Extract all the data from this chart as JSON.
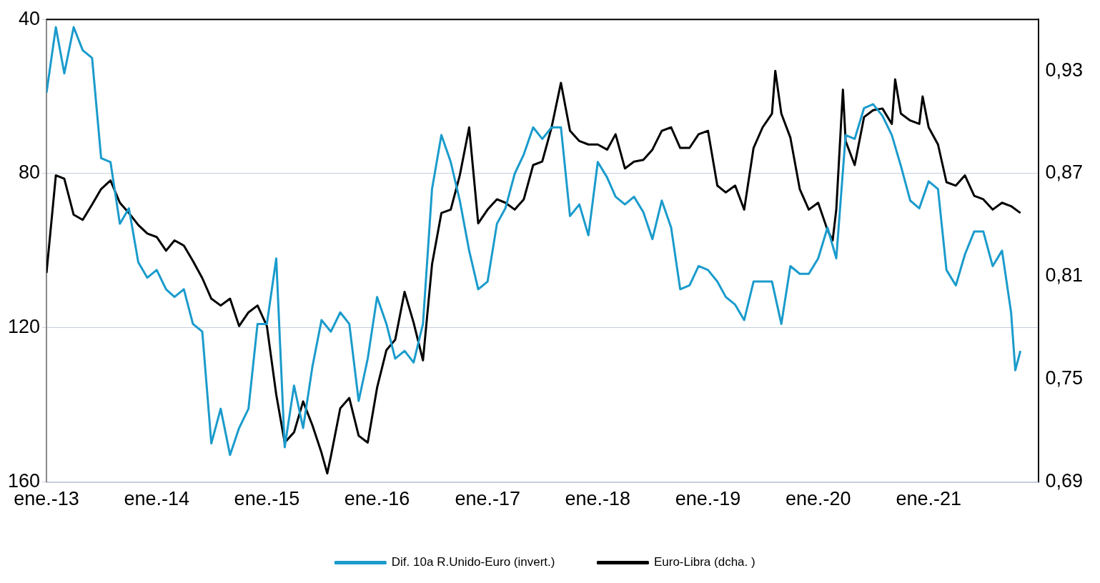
{
  "chart_data": {
    "type": "line",
    "xlim": [
      "2013-01",
      "2022-01"
    ],
    "xticks": [
      {
        "value": "2013-01",
        "label": "ene.-13"
      },
      {
        "value": "2014-01",
        "label": "ene.-14"
      },
      {
        "value": "2015-01",
        "label": "ene.-15"
      },
      {
        "value": "2016-01",
        "label": "ene.-16"
      },
      {
        "value": "2017-01",
        "label": "ene.-17"
      },
      {
        "value": "2018-01",
        "label": "ene.-18"
      },
      {
        "value": "2019-01",
        "label": "ene.-19"
      },
      {
        "value": "2020-01",
        "label": "ene.-20"
      },
      {
        "value": "2021-01",
        "label": "ene.-21"
      }
    ],
    "ylim": [
      160,
      40
    ],
    "yticks": [
      40,
      80,
      120,
      160
    ],
    "y2lim": [
      0.69,
      0.96
    ],
    "y2ticks": [
      {
        "value": 0.69,
        "label": "0,69"
      },
      {
        "value": 0.75,
        "label": "0,75"
      },
      {
        "value": 0.81,
        "label": "0,81"
      },
      {
        "value": 0.87,
        "label": "0,87"
      },
      {
        "value": 0.93,
        "label": "0,93"
      }
    ],
    "grid": "y",
    "legend": "bottom",
    "marker": "none",
    "line_style": "solid",
    "series": [
      {
        "name": "Dif. 10a R.Unido-Euro (invert.)",
        "color": "#1a9bcc",
        "x": [
          "2013-01",
          "2013-02",
          "2013-03",
          "2013-04",
          "2013-05",
          "2013-06",
          "2013-07",
          "2013-08",
          "2013-09",
          "2013-10",
          "2013-11",
          "2013-12",
          "2014-01",
          "2014-02",
          "2014-03",
          "2014-04",
          "2014-05",
          "2014-06",
          "2014-07",
          "2014-08",
          "2014-09",
          "2014-10",
          "2014-11",
          "2014-12",
          "2015-01",
          "2015-02",
          "2015-03",
          "2015-04",
          "2015-05",
          "2015-06",
          "2015-07",
          "2015-08",
          "2015-09",
          "2015-10",
          "2015-11",
          "2015-12",
          "2016-01",
          "2016-02",
          "2016-03",
          "2016-04",
          "2016-05",
          "2016-06",
          "2016-07",
          "2016-08",
          "2016-09",
          "2016-10",
          "2016-11",
          "2016-12",
          "2017-01",
          "2017-02",
          "2017-03",
          "2017-04",
          "2017-05",
          "2017-06",
          "2017-07",
          "2017-08",
          "2017-09",
          "2017-10",
          "2017-11",
          "2017-12",
          "2018-01",
          "2018-02",
          "2018-03",
          "2018-04",
          "2018-05",
          "2018-06",
          "2018-07",
          "2018-08",
          "2018-09",
          "2018-10",
          "2018-11",
          "2018-12",
          "2019-01",
          "2019-02",
          "2019-03",
          "2019-04",
          "2019-05",
          "2019-06",
          "2019-07",
          "2019-08",
          "2019-09",
          "2019-10",
          "2019-11",
          "2019-12",
          "2020-01",
          "2020-02",
          "2020-03",
          "2020-04",
          "2020-05",
          "2020-06",
          "2020-07",
          "2020-08",
          "2020-09",
          "2020-10",
          "2020-11",
          "2020-12",
          "2021-01",
          "2021-02",
          "2021-03",
          "2021-04",
          "2021-05",
          "2021-06",
          "2021-07",
          "2021-08",
          "2021-09",
          "2021-10",
          "2021-10-15",
          "2021-11"
        ],
        "values": [
          59,
          42,
          54,
          42,
          48,
          50,
          76,
          77,
          93,
          89,
          103,
          107,
          105,
          110,
          112,
          110,
          119,
          121,
          150,
          141,
          153,
          146,
          141,
          119,
          119,
          102,
          151,
          135,
          146,
          130,
          118,
          121,
          116,
          119,
          139,
          128,
          112,
          119,
          128,
          126,
          129,
          119,
          84,
          70,
          77,
          87,
          100,
          110,
          108,
          93,
          89,
          80,
          75,
          68,
          71,
          68,
          68,
          91,
          88,
          96,
          77,
          81,
          86,
          88,
          86,
          90,
          97,
          87,
          94,
          110,
          109,
          104,
          105,
          108,
          112,
          114,
          118,
          108,
          108,
          108,
          119,
          104,
          106,
          106,
          102,
          94,
          102,
          70,
          71,
          63,
          62,
          65,
          70,
          78,
          87,
          89,
          82,
          84,
          105,
          109,
          101,
          95,
          95,
          104,
          100,
          116,
          131,
          126
        ]
      },
      {
        "name": "Euro-Libra (dcha. )",
        "color": "#000000",
        "axis": "y2",
        "x": [
          "2013-01",
          "2013-02",
          "2013-03",
          "2013-04",
          "2013-05",
          "2013-06",
          "2013-07",
          "2013-08",
          "2013-09",
          "2013-10",
          "2013-11",
          "2013-12",
          "2014-01",
          "2014-02",
          "2014-03",
          "2014-04",
          "2014-05",
          "2014-06",
          "2014-07",
          "2014-08",
          "2014-09",
          "2014-10",
          "2014-11",
          "2014-12",
          "2015-01",
          "2015-02",
          "2015-03",
          "2015-04",
          "2015-05",
          "2015-06",
          "2015-07",
          "2015-07-20",
          "2015-08",
          "2015-09",
          "2015-10",
          "2015-11",
          "2015-12",
          "2016-01",
          "2016-02",
          "2016-03",
          "2016-04",
          "2016-05",
          "2016-06",
          "2016-07",
          "2016-08",
          "2016-09",
          "2016-10",
          "2016-11",
          "2016-12",
          "2017-01",
          "2017-02",
          "2017-03",
          "2017-04",
          "2017-05",
          "2017-06",
          "2017-07",
          "2017-08",
          "2017-09",
          "2017-10",
          "2017-11",
          "2017-12",
          "2018-01",
          "2018-02",
          "2018-03",
          "2018-04",
          "2018-05",
          "2018-06",
          "2018-07",
          "2018-08",
          "2018-09",
          "2018-10",
          "2018-11",
          "2018-12",
          "2019-01",
          "2019-02",
          "2019-03",
          "2019-04",
          "2019-05",
          "2019-06",
          "2019-07",
          "2019-08",
          "2019-08-12",
          "2019-09",
          "2019-10",
          "2019-11",
          "2019-12",
          "2020-01",
          "2020-02",
          "2020-02-18",
          "2020-03",
          "2020-03-23",
          "2020-04",
          "2020-05",
          "2020-06",
          "2020-07",
          "2020-08",
          "2020-09",
          "2020-09-12",
          "2020-10",
          "2020-11",
          "2020-12",
          "2020-12-12",
          "2021-01",
          "2021-02",
          "2021-03",
          "2021-04",
          "2021-05",
          "2021-06",
          "2021-07",
          "2021-08",
          "2021-09",
          "2021-10",
          "2021-11"
        ],
        "values": [
          0.812,
          0.869,
          0.867,
          0.846,
          0.843,
          0.852,
          0.861,
          0.866,
          0.853,
          0.847,
          0.84,
          0.835,
          0.833,
          0.825,
          0.831,
          0.828,
          0.819,
          0.809,
          0.797,
          0.793,
          0.797,
          0.781,
          0.789,
          0.793,
          0.781,
          0.741,
          0.713,
          0.719,
          0.737,
          0.723,
          0.707,
          0.695,
          0.705,
          0.733,
          0.739,
          0.717,
          0.713,
          0.745,
          0.767,
          0.773,
          0.801,
          0.783,
          0.761,
          0.817,
          0.847,
          0.849,
          0.869,
          0.897,
          0.841,
          0.849,
          0.855,
          0.853,
          0.849,
          0.855,
          0.875,
          0.877,
          0.897,
          0.923,
          0.895,
          0.889,
          0.887,
          0.887,
          0.884,
          0.893,
          0.873,
          0.877,
          0.878,
          0.884,
          0.895,
          0.897,
          0.885,
          0.885,
          0.893,
          0.895,
          0.863,
          0.859,
          0.863,
          0.849,
          0.885,
          0.897,
          0.905,
          0.93,
          0.905,
          0.891,
          0.861,
          0.849,
          0.853,
          0.837,
          0.831,
          0.849,
          0.919,
          0.889,
          0.875,
          0.903,
          0.907,
          0.908,
          0.899,
          0.925,
          0.905,
          0.901,
          0.899,
          0.915,
          0.897,
          0.887,
          0.865,
          0.863,
          0.869,
          0.857,
          0.855,
          0.849,
          0.853,
          0.851,
          0.847
        ]
      }
    ]
  }
}
